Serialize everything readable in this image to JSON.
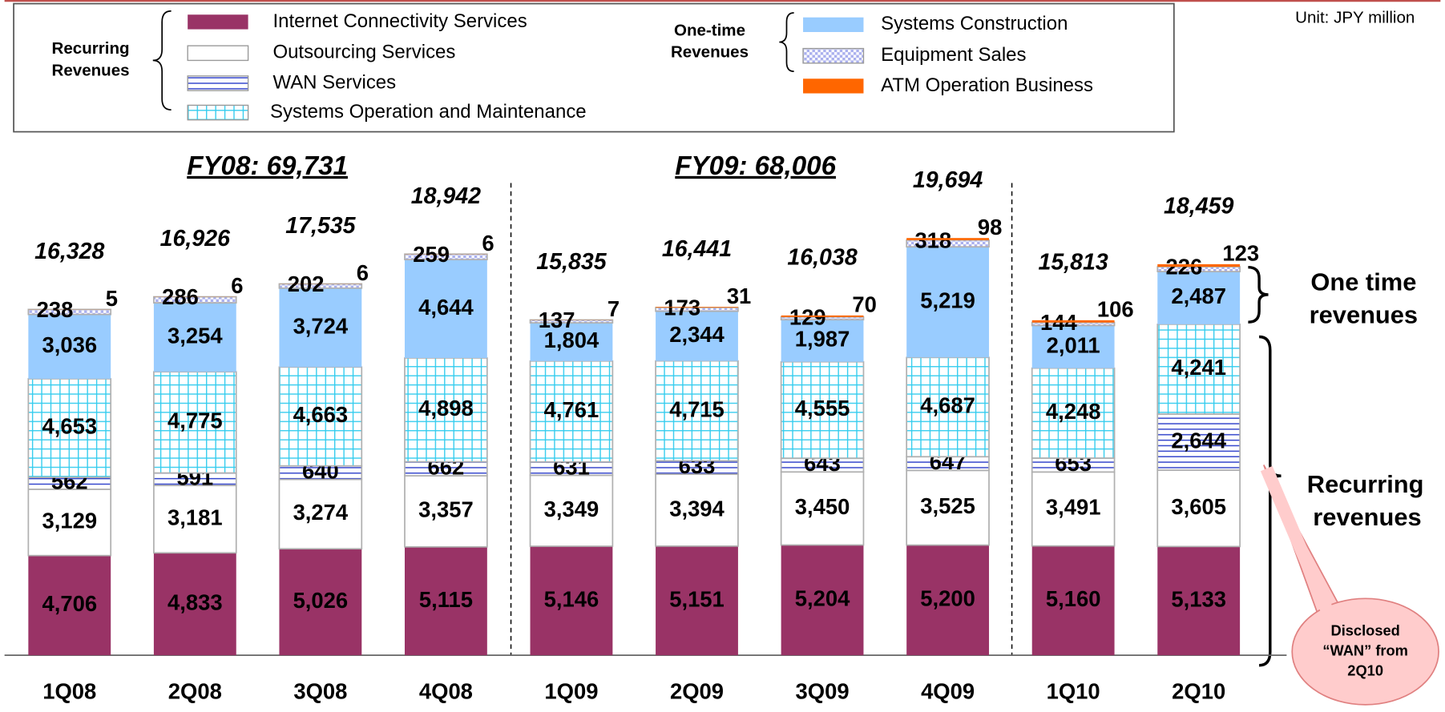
{
  "chart_data": {
    "type": "stacked_bar",
    "unit": "Unit: JPY million",
    "legend_groups": [
      [
        "Recurring",
        "Revenues"
      ],
      [
        "One-time",
        "Revenues"
      ]
    ],
    "annotations": [
      "FY08: 69,731",
      "FY09: 68,006",
      [
        "One time",
        "revenues"
      ],
      [
        "Recurring",
        "revenues"
      ],
      [
        "Disclosed",
        "“WAN” from",
        "2Q10"
      ]
    ],
    "categories": [
      "1Q08",
      "2Q08",
      "3Q08",
      "4Q08",
      "1Q09",
      "2Q09",
      "3Q09",
      "4Q09",
      "1Q10",
      "2Q10"
    ],
    "totals": [
      16328,
      16926,
      17535,
      18942,
      15835,
      16441,
      16038,
      19694,
      15813,
      18459
    ],
    "total_labels": [
      "16,328",
      "16,926",
      "17,535",
      "18,942",
      "15,835",
      "16,441",
      "16,038",
      "19,694",
      "15,813",
      "18,459"
    ],
    "series": [
      {
        "name": "Internet Connectivity Services",
        "color": "#993366",
        "pattern": "solid",
        "values": [
          4706,
          4833,
          5026,
          5115,
          5146,
          5151,
          5204,
          5200,
          5160,
          5133
        ],
        "value_labels": [
          "4,706",
          "4,833",
          "5,026",
          "5,115",
          "5,146",
          "5,151",
          "5,204",
          "5,200",
          "5,160",
          "5,133"
        ]
      },
      {
        "name": "Outsourcing Services",
        "color": "#ffffff",
        "pattern": "solid",
        "values": [
          3129,
          3181,
          3274,
          3357,
          3349,
          3394,
          3450,
          3525,
          3491,
          3605
        ],
        "value_labels": [
          "3,129",
          "3,181",
          "3,274",
          "3,357",
          "3,349",
          "3,394",
          "3,450",
          "3,525",
          "3,491",
          "3,605"
        ]
      },
      {
        "name": "WAN Services",
        "color": "#3344cc",
        "pattern": "hlines",
        "values": [
          562,
          591,
          640,
          662,
          631,
          633,
          643,
          647,
          653,
          2644
        ],
        "value_labels": [
          "562",
          "591",
          "640",
          "662",
          "631",
          "633",
          "643",
          "647",
          "653",
          "2,644"
        ]
      },
      {
        "name": "Systems Operation and Maintenance",
        "color": "#33ccee",
        "pattern": "grid",
        "values": [
          4653,
          4775,
          4663,
          4898,
          4761,
          4715,
          4555,
          4687,
          4248,
          4241
        ],
        "value_labels": [
          "4,653",
          "4,775",
          "4,663",
          "4,898",
          "4,761",
          "4,715",
          "4,555",
          "4,687",
          "4,248",
          "4,241"
        ]
      },
      {
        "name": "Systems Construction",
        "color": "#99ccff",
        "pattern": "solid",
        "values": [
          3036,
          3254,
          3724,
          4644,
          1804,
          2344,
          1987,
          5219,
          2011,
          2487
        ],
        "value_labels": [
          "3,036",
          "3,254",
          "3,724",
          "4,644",
          "1,804",
          "2,344",
          "1,987",
          "5,219",
          "2,011",
          "2,487"
        ]
      },
      {
        "name": "Equipment Sales",
        "color": "#aab0ee",
        "pattern": "dots",
        "values": [
          238,
          286,
          202,
          259,
          137,
          173,
          129,
          318,
          144,
          226
        ]
      },
      {
        "name": "ATM Operation Business",
        "color": "#ff6600",
        "pattern": "solid",
        "values": [
          5,
          6,
          6,
          6,
          7,
          31,
          70,
          98,
          106,
          123
        ]
      }
    ]
  }
}
